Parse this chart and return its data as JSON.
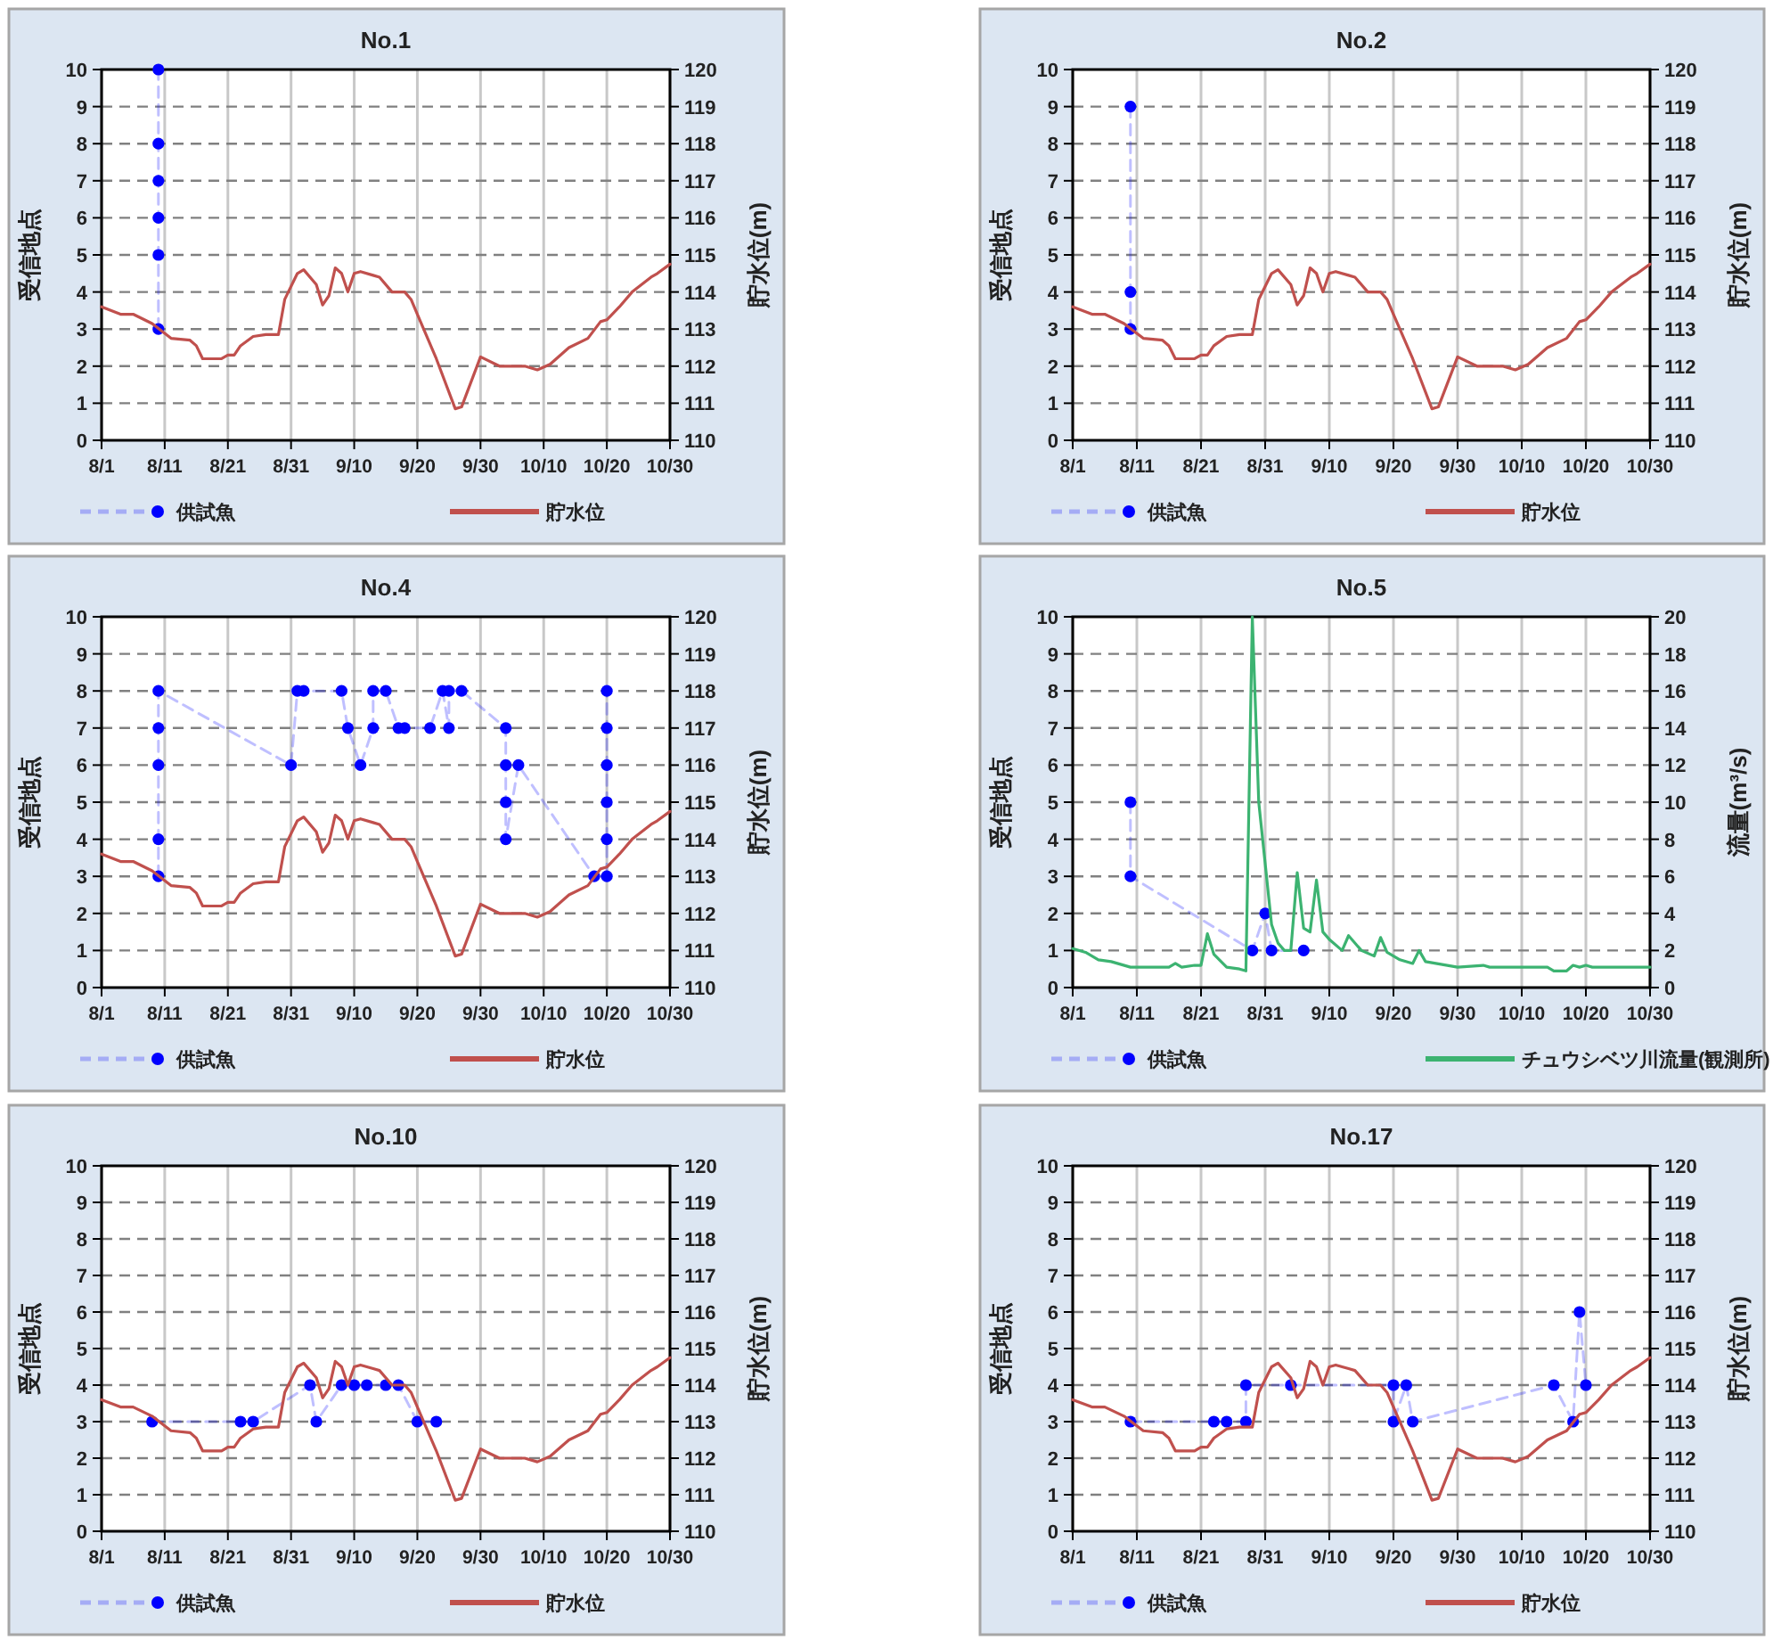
{
  "chart_data": [
    {
      "type": "line",
      "title": "No.1",
      "ylabel": "受信地点",
      "y2label": "貯水位(m)",
      "xlim": [
        "--08-01",
        "--10-30"
      ],
      "xticks": [
        {
          "value": "--08-01",
          "label": "8/1"
        },
        {
          "value": "--08-11",
          "label": "8/11"
        },
        {
          "value": "--08-21",
          "label": "8/21"
        },
        {
          "value": "--08-31",
          "label": "8/31"
        },
        {
          "value": "--09-10",
          "label": "9/10"
        },
        {
          "value": "--09-20",
          "label": "9/20"
        },
        {
          "value": "--09-30",
          "label": "9/30"
        },
        {
          "value": "--10-10",
          "label": "10/10"
        },
        {
          "value": "--10-20",
          "label": "10/20"
        },
        {
          "value": "--10-30",
          "label": "10/30"
        }
      ],
      "ylim": [
        0,
        10
      ],
      "yticks": [
        0,
        1,
        2,
        3,
        4,
        5,
        6,
        7,
        8,
        9,
        10
      ],
      "y2lim": [
        110,
        120
      ],
      "y2ticks": [
        110,
        111,
        112,
        113,
        114,
        115,
        116,
        117,
        118,
        119,
        120
      ],
      "grid": true,
      "legend": "bottom",
      "series": [
        {
          "name": "供試魚",
          "type": "line",
          "color": "#0000ff",
          "marker": "circle",
          "line_style": "dashed",
          "x": [
            "--08-10",
            "--08-10",
            "--08-10",
            "--08-10",
            "--08-10",
            "--08-10"
          ],
          "values": [
            3,
            5,
            6,
            7,
            8,
            10
          ]
        },
        {
          "name": "貯水位",
          "type": "line",
          "axis": "y2",
          "color": "#c0504d",
          "x": [
            "--08-01",
            "--08-04",
            "--08-06",
            "--08-09",
            "--08-12",
            "--08-15",
            "--08-16",
            "--08-17",
            "--08-20",
            "--08-21",
            "--08-22",
            "--08-23",
            "--08-25",
            "--08-27",
            "--08-29",
            "--08-30",
            "--09-01",
            "--09-02",
            "--09-04",
            "--09-05",
            "--09-06",
            "--09-07",
            "--09-08",
            "--09-09",
            "--09-10",
            "--09-11",
            "--09-13",
            "--09-14",
            "--09-16",
            "--09-18",
            "--09-19",
            "--09-20",
            "--09-23",
            "--09-26",
            "--09-27",
            "--09-30",
            "--10-03",
            "--10-07",
            "--10-09",
            "--10-11",
            "--10-14",
            "--10-17",
            "--10-19",
            "--10-20",
            "--10-22",
            "--10-24",
            "--10-27",
            "--10-28",
            "--10-30"
          ],
          "values": [
            113.6,
            113.4,
            113.4,
            113.15,
            112.75,
            112.7,
            112.55,
            112.2,
            112.2,
            112.3,
            112.3,
            112.55,
            112.8,
            112.85,
            112.85,
            113.8,
            114.5,
            114.6,
            114.2,
            113.65,
            113.9,
            114.65,
            114.5,
            114.0,
            114.5,
            114.55,
            114.45,
            114.4,
            114.0,
            114.0,
            113.8,
            113.4,
            112.2,
            110.85,
            110.9,
            112.25,
            112.0,
            112.0,
            111.9,
            112.05,
            112.5,
            112.75,
            113.2,
            113.25,
            113.6,
            114.0,
            114.4,
            114.5,
            114.75
          ]
        }
      ]
    },
    {
      "type": "line",
      "title": "No.2",
      "ylabel": "受信地点",
      "y2label": "貯水位(m)",
      "xlim": [
        "--08-01",
        "--10-30"
      ],
      "xticks": [
        {
          "value": "--08-01",
          "label": "8/1"
        },
        {
          "value": "--08-11",
          "label": "8/11"
        },
        {
          "value": "--08-21",
          "label": "8/21"
        },
        {
          "value": "--08-31",
          "label": "8/31"
        },
        {
          "value": "--09-10",
          "label": "9/10"
        },
        {
          "value": "--09-20",
          "label": "9/20"
        },
        {
          "value": "--09-30",
          "label": "9/30"
        },
        {
          "value": "--10-10",
          "label": "10/10"
        },
        {
          "value": "--10-20",
          "label": "10/20"
        },
        {
          "value": "--10-30",
          "label": "10/30"
        }
      ],
      "ylim": [
        0,
        10
      ],
      "yticks": [
        0,
        1,
        2,
        3,
        4,
        5,
        6,
        7,
        8,
        9,
        10
      ],
      "y2lim": [
        110,
        120
      ],
      "y2ticks": [
        110,
        111,
        112,
        113,
        114,
        115,
        116,
        117,
        118,
        119,
        120
      ],
      "grid": true,
      "legend": "bottom",
      "series": [
        {
          "name": "供試魚",
          "type": "line",
          "color": "#0000ff",
          "marker": "circle",
          "line_style": "dashed",
          "x": [
            "--08-10",
            "--08-10",
            "--08-10"
          ],
          "values": [
            9,
            4,
            3
          ]
        },
        {
          "name": "貯水位",
          "type": "line",
          "axis": "y2",
          "color": "#c0504d",
          "x": [
            "--08-01",
            "--08-04",
            "--08-06",
            "--08-09",
            "--08-12",
            "--08-15",
            "--08-16",
            "--08-17",
            "--08-20",
            "--08-21",
            "--08-22",
            "--08-23",
            "--08-25",
            "--08-27",
            "--08-29",
            "--08-30",
            "--09-01",
            "--09-02",
            "--09-04",
            "--09-05",
            "--09-06",
            "--09-07",
            "--09-08",
            "--09-09",
            "--09-10",
            "--09-11",
            "--09-13",
            "--09-14",
            "--09-16",
            "--09-18",
            "--09-19",
            "--09-20",
            "--09-23",
            "--09-26",
            "--09-27",
            "--09-30",
            "--10-03",
            "--10-07",
            "--10-09",
            "--10-11",
            "--10-14",
            "--10-17",
            "--10-19",
            "--10-20",
            "--10-22",
            "--10-24",
            "--10-27",
            "--10-28",
            "--10-30"
          ],
          "values": [
            113.6,
            113.4,
            113.4,
            113.15,
            112.75,
            112.7,
            112.55,
            112.2,
            112.2,
            112.3,
            112.3,
            112.55,
            112.8,
            112.85,
            112.85,
            113.8,
            114.5,
            114.6,
            114.2,
            113.65,
            113.9,
            114.65,
            114.5,
            114.0,
            114.5,
            114.55,
            114.45,
            114.4,
            114.0,
            114.0,
            113.8,
            113.4,
            112.2,
            110.85,
            110.9,
            112.25,
            112.0,
            112.0,
            111.9,
            112.05,
            112.5,
            112.75,
            113.2,
            113.25,
            113.6,
            114.0,
            114.4,
            114.5,
            114.75
          ]
        }
      ]
    },
    {
      "type": "line",
      "title": "No.4",
      "ylabel": "受信地点",
      "y2label": "貯水位(m)",
      "xlim": [
        "--08-01",
        "--10-30"
      ],
      "xticks": [
        {
          "value": "--08-01",
          "label": "8/1"
        },
        {
          "value": "--08-11",
          "label": "8/11"
        },
        {
          "value": "--08-21",
          "label": "8/21"
        },
        {
          "value": "--08-31",
          "label": "8/31"
        },
        {
          "value": "--09-10",
          "label": "9/10"
        },
        {
          "value": "--09-20",
          "label": "9/20"
        },
        {
          "value": "--09-30",
          "label": "9/30"
        },
        {
          "value": "--10-10",
          "label": "10/10"
        },
        {
          "value": "--10-20",
          "label": "10/20"
        },
        {
          "value": "--10-30",
          "label": "10/30"
        }
      ],
      "ylim": [
        0,
        10
      ],
      "yticks": [
        0,
        1,
        2,
        3,
        4,
        5,
        6,
        7,
        8,
        9,
        10
      ],
      "y2lim": [
        110,
        120
      ],
      "y2ticks": [
        110,
        111,
        112,
        113,
        114,
        115,
        116,
        117,
        118,
        119,
        120
      ],
      "grid": true,
      "legend": "bottom",
      "series": [
        {
          "name": "供試魚",
          "type": "line",
          "color": "#0000ff",
          "marker": "circle",
          "line_style": "dashed",
          "x": [
            "--08-10",
            "--08-10",
            "--08-10",
            "--08-10",
            "--08-10",
            "--08-31",
            "--09-01",
            "--09-02",
            "--09-08",
            "--09-09",
            "--09-11",
            "--09-13",
            "--09-13",
            "--09-15",
            "--09-17",
            "--09-18",
            "--09-22",
            "--09-24",
            "--09-25",
            "--09-25",
            "--09-27",
            "--10-04",
            "--10-04",
            "--10-04",
            "--10-04",
            "--10-06",
            "--10-18",
            "--10-20",
            "--10-20",
            "--10-20",
            "--10-20",
            "--10-20",
            "--10-20"
          ],
          "values": [
            3,
            4,
            6,
            7,
            8,
            6,
            8,
            8,
            8,
            7,
            6,
            7,
            8,
            8,
            7,
            7,
            7,
            8,
            7,
            8,
            8,
            7,
            6,
            5,
            4,
            6,
            3,
            3,
            4,
            5,
            6,
            7,
            8
          ]
        },
        {
          "name": "貯水位",
          "type": "line",
          "axis": "y2",
          "color": "#c0504d",
          "x": [
            "--08-01",
            "--08-04",
            "--08-06",
            "--08-09",
            "--08-12",
            "--08-15",
            "--08-16",
            "--08-17",
            "--08-20",
            "--08-21",
            "--08-22",
            "--08-23",
            "--08-25",
            "--08-27",
            "--08-29",
            "--08-30",
            "--09-01",
            "--09-02",
            "--09-04",
            "--09-05",
            "--09-06",
            "--09-07",
            "--09-08",
            "--09-09",
            "--09-10",
            "--09-11",
            "--09-13",
            "--09-14",
            "--09-16",
            "--09-18",
            "--09-19",
            "--09-20",
            "--09-23",
            "--09-26",
            "--09-27",
            "--09-30",
            "--10-03",
            "--10-07",
            "--10-09",
            "--10-11",
            "--10-14",
            "--10-17",
            "--10-19",
            "--10-20",
            "--10-22",
            "--10-24",
            "--10-27",
            "--10-28",
            "--10-30"
          ],
          "values": [
            113.6,
            113.4,
            113.4,
            113.15,
            112.75,
            112.7,
            112.55,
            112.2,
            112.2,
            112.3,
            112.3,
            112.55,
            112.8,
            112.85,
            112.85,
            113.8,
            114.5,
            114.6,
            114.2,
            113.65,
            113.9,
            114.65,
            114.5,
            114.0,
            114.5,
            114.55,
            114.45,
            114.4,
            114.0,
            114.0,
            113.8,
            113.4,
            112.2,
            110.85,
            110.9,
            112.25,
            112.0,
            112.0,
            111.9,
            112.05,
            112.5,
            112.75,
            113.2,
            113.25,
            113.6,
            114.0,
            114.4,
            114.5,
            114.75
          ]
        }
      ]
    },
    {
      "type": "line",
      "title": "No.5",
      "ylabel": "受信地点",
      "y2label": "流量(m³/s)",
      "xlim": [
        "--08-01",
        "--10-30"
      ],
      "xticks": [
        {
          "value": "--08-01",
          "label": "8/1"
        },
        {
          "value": "--08-11",
          "label": "8/11"
        },
        {
          "value": "--08-21",
          "label": "8/21"
        },
        {
          "value": "--08-31",
          "label": "8/31"
        },
        {
          "value": "--09-10",
          "label": "9/10"
        },
        {
          "value": "--09-20",
          "label": "9/20"
        },
        {
          "value": "--09-30",
          "label": "9/30"
        },
        {
          "value": "--10-10",
          "label": "10/10"
        },
        {
          "value": "--10-20",
          "label": "10/20"
        },
        {
          "value": "--10-30",
          "label": "10/30"
        }
      ],
      "ylim": [
        0,
        10
      ],
      "yticks": [
        0,
        1,
        2,
        3,
        4,
        5,
        6,
        7,
        8,
        9,
        10
      ],
      "y2lim": [
        0,
        20
      ],
      "y2ticks": [
        0,
        2,
        4,
        6,
        8,
        10,
        12,
        14,
        16,
        18,
        20
      ],
      "grid": true,
      "legend": "bottom",
      "series": [
        {
          "name": "供試魚",
          "type": "line",
          "color": "#0000ff",
          "marker": "circle",
          "line_style": "dashed",
          "x": [
            "--08-10",
            "--08-10",
            "--08-29",
            "--08-31",
            "--09-01",
            "--09-06"
          ],
          "values": [
            5,
            3,
            1,
            2,
            1,
            1
          ]
        },
        {
          "name": "チュウシベツ川流量(観測所)",
          "type": "line",
          "axis": "y2",
          "color": "#3cb371",
          "x": [
            "--08-01",
            "--08-03",
            "--08-05",
            "--08-07",
            "--08-10",
            "--08-16",
            "--08-17",
            "--08-18",
            "--08-20",
            "--08-21",
            "--08-22",
            "--08-23",
            "--08-25",
            "--08-27",
            "--08-28",
            "--08-29",
            "--08-30",
            "--09-01",
            "--09-02",
            "--09-03",
            "--09-04",
            "--09-05",
            "--09-06",
            "--09-07",
            "--09-08",
            "--09-09",
            "--09-10",
            "--09-12",
            "--09-13",
            "--09-15",
            "--09-17",
            "--09-18",
            "--09-19",
            "--09-21",
            "--09-23",
            "--09-24",
            "--09-25",
            "--09-30",
            "--10-04",
            "--10-05",
            "--10-14",
            "--10-15",
            "--10-17",
            "--10-18",
            "--10-19",
            "--10-20",
            "--10-21",
            "--10-30"
          ],
          "values": [
            2.1,
            1.9,
            1.5,
            1.4,
            1.1,
            1.1,
            1.3,
            1.1,
            1.2,
            1.2,
            2.9,
            1.8,
            1.1,
            1.0,
            0.9,
            20,
            10,
            3.4,
            2.4,
            2.0,
            2.0,
            6.2,
            3.2,
            3.0,
            5.8,
            3.0,
            2.6,
            2.0,
            2.8,
            2.0,
            1.7,
            2.7,
            1.9,
            1.5,
            1.3,
            2.0,
            1.4,
            1.1,
            1.2,
            1.1,
            1.1,
            0.9,
            0.9,
            1.2,
            1.1,
            1.2,
            1.1,
            1.1
          ]
        }
      ]
    },
    {
      "type": "line",
      "title": "No.10",
      "ylabel": "受信地点",
      "y2label": "貯水位(m)",
      "xlim": [
        "--08-01",
        "--10-30"
      ],
      "xticks": [
        {
          "value": "--08-01",
          "label": "8/1"
        },
        {
          "value": "--08-11",
          "label": "8/11"
        },
        {
          "value": "--08-21",
          "label": "8/21"
        },
        {
          "value": "--08-31",
          "label": "8/31"
        },
        {
          "value": "--09-10",
          "label": "9/10"
        },
        {
          "value": "--09-20",
          "label": "9/20"
        },
        {
          "value": "--09-30",
          "label": "9/30"
        },
        {
          "value": "--10-10",
          "label": "10/10"
        },
        {
          "value": "--10-20",
          "label": "10/20"
        },
        {
          "value": "--10-30",
          "label": "10/30"
        }
      ],
      "ylim": [
        0,
        10
      ],
      "yticks": [
        0,
        1,
        2,
        3,
        4,
        5,
        6,
        7,
        8,
        9,
        10
      ],
      "y2lim": [
        110,
        120
      ],
      "y2ticks": [
        110,
        111,
        112,
        113,
        114,
        115,
        116,
        117,
        118,
        119,
        120
      ],
      "grid": true,
      "legend": "bottom",
      "series": [
        {
          "name": "供試魚",
          "type": "line",
          "color": "#0000ff",
          "marker": "circle",
          "line_style": "dashed",
          "x": [
            "--08-09",
            "--08-23",
            "--08-25",
            "--09-03",
            "--09-04",
            "--09-08",
            "--09-10",
            "--09-12",
            "--09-15",
            "--09-17",
            "--09-20",
            "--09-23"
          ],
          "values": [
            3,
            3,
            3,
            4,
            3,
            4,
            4,
            4,
            4,
            4,
            3,
            3
          ]
        },
        {
          "name": "貯水位",
          "type": "line",
          "axis": "y2",
          "color": "#c0504d",
          "x": [
            "--08-01",
            "--08-04",
            "--08-06",
            "--08-09",
            "--08-12",
            "--08-15",
            "--08-16",
            "--08-17",
            "--08-20",
            "--08-21",
            "--08-22",
            "--08-23",
            "--08-25",
            "--08-27",
            "--08-29",
            "--08-30",
            "--09-01",
            "--09-02",
            "--09-04",
            "--09-05",
            "--09-06",
            "--09-07",
            "--09-08",
            "--09-09",
            "--09-10",
            "--09-11",
            "--09-13",
            "--09-14",
            "--09-16",
            "--09-18",
            "--09-19",
            "--09-20",
            "--09-23",
            "--09-26",
            "--09-27",
            "--09-30",
            "--10-03",
            "--10-07",
            "--10-09",
            "--10-11",
            "--10-14",
            "--10-17",
            "--10-19",
            "--10-20",
            "--10-22",
            "--10-24",
            "--10-27",
            "--10-28",
            "--10-30"
          ],
          "values": [
            113.6,
            113.4,
            113.4,
            113.15,
            112.75,
            112.7,
            112.55,
            112.2,
            112.2,
            112.3,
            112.3,
            112.55,
            112.8,
            112.85,
            112.85,
            113.8,
            114.5,
            114.6,
            114.2,
            113.65,
            113.9,
            114.65,
            114.5,
            114.0,
            114.5,
            114.55,
            114.45,
            114.4,
            114.0,
            114.0,
            113.8,
            113.4,
            112.2,
            110.85,
            110.9,
            112.25,
            112.0,
            112.0,
            111.9,
            112.05,
            112.5,
            112.75,
            113.2,
            113.25,
            113.6,
            114.0,
            114.4,
            114.5,
            114.75
          ]
        }
      ]
    },
    {
      "type": "line",
      "title": "No.17",
      "ylabel": "受信地点",
      "y2label": "貯水位(m)",
      "xlim": [
        "--08-01",
        "--10-30"
      ],
      "xticks": [
        {
          "value": "--08-01",
          "label": "8/1"
        },
        {
          "value": "--08-11",
          "label": "8/11"
        },
        {
          "value": "--08-21",
          "label": "8/21"
        },
        {
          "value": "--08-31",
          "label": "8/31"
        },
        {
          "value": "--09-10",
          "label": "9/10"
        },
        {
          "value": "--09-20",
          "label": "9/20"
        },
        {
          "value": "--09-30",
          "label": "9/30"
        },
        {
          "value": "--10-10",
          "label": "10/10"
        },
        {
          "value": "--10-20",
          "label": "10/20"
        },
        {
          "value": "--10-30",
          "label": "10/30"
        }
      ],
      "ylim": [
        0,
        10
      ],
      "yticks": [
        0,
        1,
        2,
        3,
        4,
        5,
        6,
        7,
        8,
        9,
        10
      ],
      "y2lim": [
        110,
        120
      ],
      "y2ticks": [
        110,
        111,
        112,
        113,
        114,
        115,
        116,
        117,
        118,
        119,
        120
      ],
      "grid": true,
      "legend": "bottom",
      "series": [
        {
          "name": "供試魚",
          "type": "line",
          "color": "#0000ff",
          "marker": "circle",
          "line_style": "dashed",
          "x": [
            "--08-10",
            "--08-23",
            "--08-25",
            "--08-28",
            "--08-28",
            "--09-04",
            "--09-20",
            "--09-20",
            "--09-22",
            "--09-23",
            "--10-15",
            "--10-18",
            "--10-19",
            "--10-20"
          ],
          "values": [
            3,
            3,
            3,
            3,
            4,
            4,
            4,
            3,
            4,
            3,
            4,
            3,
            6,
            4
          ]
        },
        {
          "name": "貯水位",
          "type": "line",
          "axis": "y2",
          "color": "#c0504d",
          "x": [
            "--08-01",
            "--08-04",
            "--08-06",
            "--08-09",
            "--08-12",
            "--08-15",
            "--08-16",
            "--08-17",
            "--08-20",
            "--08-21",
            "--08-22",
            "--08-23",
            "--08-25",
            "--08-27",
            "--08-29",
            "--08-30",
            "--09-01",
            "--09-02",
            "--09-04",
            "--09-05",
            "--09-06",
            "--09-07",
            "--09-08",
            "--09-09",
            "--09-10",
            "--09-11",
            "--09-13",
            "--09-14",
            "--09-16",
            "--09-18",
            "--09-19",
            "--09-20",
            "--09-23",
            "--09-26",
            "--09-27",
            "--09-30",
            "--10-03",
            "--10-07",
            "--10-09",
            "--10-11",
            "--10-14",
            "--10-17",
            "--10-19",
            "--10-20",
            "--10-22",
            "--10-24",
            "--10-27",
            "--10-28",
            "--10-30"
          ],
          "values": [
            113.6,
            113.4,
            113.4,
            113.15,
            112.75,
            112.7,
            112.55,
            112.2,
            112.2,
            112.3,
            112.3,
            112.55,
            112.8,
            112.85,
            112.85,
            113.8,
            114.5,
            114.6,
            114.2,
            113.65,
            113.9,
            114.65,
            114.5,
            114.0,
            114.5,
            114.55,
            114.45,
            114.4,
            114.0,
            114.0,
            113.8,
            113.4,
            112.2,
            110.85,
            110.9,
            112.25,
            112.0,
            112.0,
            111.9,
            112.05,
            112.5,
            112.75,
            113.2,
            113.25,
            113.6,
            114.0,
            114.4,
            114.5,
            114.75
          ]
        }
      ]
    }
  ]
}
